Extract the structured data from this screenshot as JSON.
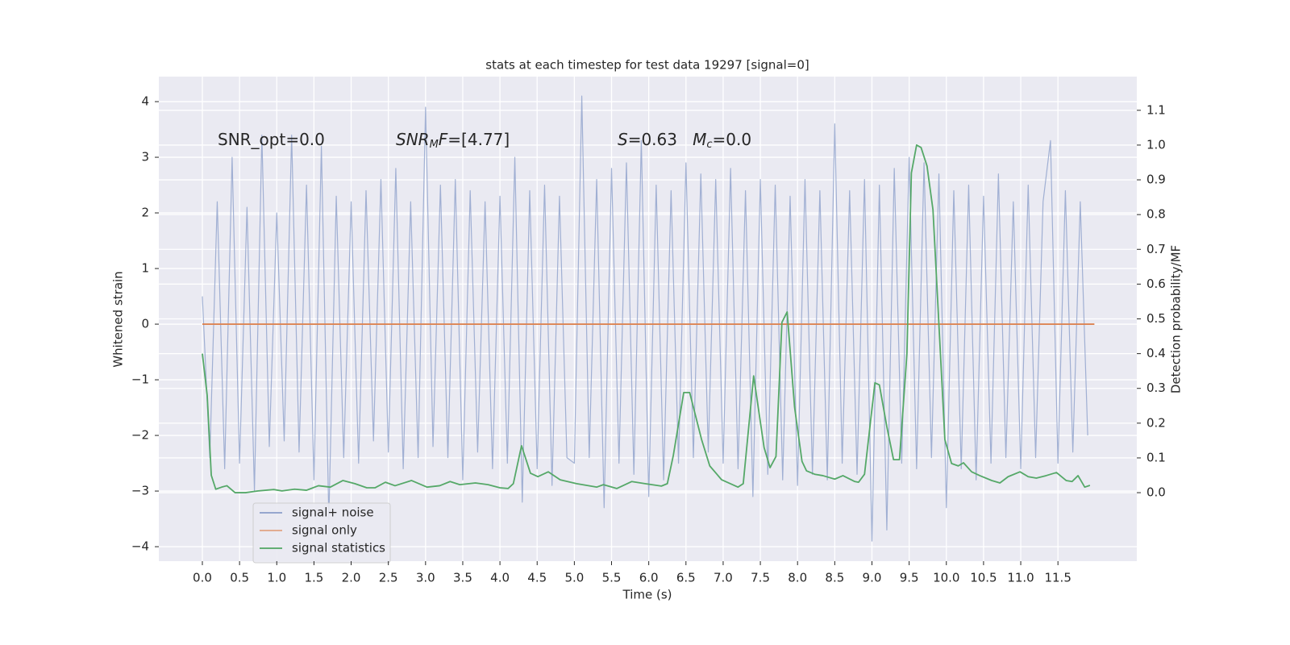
{
  "chart_data": {
    "type": "line",
    "title": "stats at each timestep for test data 19297 [signal=0]",
    "xlabel": "Time (s)",
    "ylabel": "Whitened strain",
    "y2label": "Detection probability/MF",
    "annotations": [
      {
        "segments": [
          "SNR_opt=0.0"
        ]
      },
      {
        "segments": [
          "SNR",
          "M",
          "F",
          "=[4.77]"
        ]
      },
      {
        "segments": [
          "S",
          "=0.63   ",
          "M",
          "c",
          "=0.0"
        ]
      }
    ],
    "legend": "lower left",
    "grid": true,
    "xlim": [
      -0.585,
      12.56
    ],
    "xticks": [
      {
        "value": 0,
        "label": "0.0"
      },
      0.5,
      {
        "value": 1,
        "label": "1.0"
      },
      1.5,
      {
        "value": 2,
        "label": "2.0"
      },
      2.5,
      {
        "value": 3,
        "label": "3.0"
      },
      3.5,
      {
        "value": 4,
        "label": "4.0"
      },
      4.5,
      {
        "value": 5,
        "label": "5.0"
      },
      5.5,
      {
        "value": 6,
        "label": "6.0"
      },
      6.5,
      {
        "value": 7,
        "label": "7.0"
      },
      7.5,
      {
        "value": 8,
        "label": "8.0"
      },
      8.5,
      {
        "value": 9,
        "label": "9.0"
      },
      9.5,
      {
        "value": 10,
        "label": "10.0"
      },
      10.5,
      {
        "value": 11,
        "label": "11.0"
      },
      11.5
    ],
    "ylim": [
      -4.26,
      4.45
    ],
    "yticks": [
      {
        "value": -4,
        "label": "−4"
      },
      {
        "value": -3,
        "label": "−3"
      },
      {
        "value": -2,
        "label": "−2"
      },
      {
        "value": -1,
        "label": "−1"
      },
      0,
      1,
      2,
      3,
      4
    ],
    "y2lim": [
      -0.197,
      1.197
    ],
    "y2ticks": [
      {
        "value": 0,
        "label": "0.0"
      },
      0.1,
      0.2,
      0.3,
      0.4,
      0.5,
      0.6,
      0.7,
      0.8,
      0.9,
      {
        "value": 1,
        "label": "1.0"
      },
      1.1
    ],
    "series": [
      {
        "name": "signal+ noise",
        "color": "#8da0cb",
        "x": [
          0,
          0.1,
          0.2,
          0.3,
          0.4,
          0.5,
          0.6,
          0.7,
          0.8,
          0.9,
          1,
          1.1,
          1.2,
          1.3,
          1.4,
          1.5,
          1.6,
          1.7,
          1.8,
          1.9,
          2,
          2.1,
          2.2,
          2.3,
          2.4,
          2.5,
          2.6,
          2.7,
          2.8,
          2.9,
          3,
          3.1,
          3.2,
          3.3,
          3.4,
          3.5,
          3.6,
          3.7,
          3.8,
          3.9,
          4,
          4.1,
          4.2,
          4.3,
          4.4,
          4.5,
          4.6,
          4.7,
          4.8,
          4.9,
          5,
          5.1,
          5.2,
          5.3,
          5.4,
          5.5,
          5.6,
          5.7,
          5.8,
          5.9,
          6,
          6.1,
          6.2,
          6.3,
          6.4,
          6.5,
          6.6,
          6.7,
          6.8,
          6.9,
          7,
          7.1,
          7.2,
          7.3,
          7.4,
          7.5,
          7.6,
          7.7,
          7.8,
          7.9,
          8,
          8.1,
          8.2,
          8.3,
          8.4,
          8.5,
          8.6,
          8.7,
          8.8,
          8.9,
          9,
          9.1,
          9.2,
          9.3,
          9.4,
          9.5,
          9.6,
          9.7,
          9.8,
          9.9,
          10,
          10.1,
          10.2,
          10.3,
          10.4,
          10.5,
          10.6,
          10.7,
          10.8,
          10.9,
          11,
          11.1,
          11.2,
          11.3,
          11.4,
          11.5,
          11.6,
          11.7,
          11.8,
          11.9
        ],
        "values": [
          0.5,
          -2.4,
          2.2,
          -2.6,
          3.0,
          -2.5,
          2.1,
          -3.0,
          3.4,
          -2.2,
          2.0,
          -2.1,
          3.4,
          -2.3,
          2.5,
          -2.8,
          3.2,
          -3.5,
          2.3,
          -2.4,
          2.2,
          -2.5,
          2.4,
          -2.1,
          2.6,
          -2.3,
          2.8,
          -2.6,
          2.2,
          -2.4,
          3.9,
          -2.2,
          2.5,
          -2.4,
          2.6,
          -2.8,
          2.4,
          -2.3,
          2.2,
          -2.6,
          2.3,
          -2.5,
          3.0,
          -3.2,
          2.4,
          -2.6,
          2.5,
          -2.9,
          2.3,
          -2.4,
          -2.5,
          4.1,
          -2.4,
          2.6,
          -3.3,
          2.8,
          -2.5,
          2.9,
          -2.7,
          3.3,
          -3.1,
          2.5,
          -2.8,
          2.4,
          -2.5,
          2.9,
          -2.4,
          2.7,
          -2.3,
          2.6,
          -2.5,
          2.8,
          -2.6,
          2.4,
          -3.1,
          2.6,
          -2.7,
          2.5,
          -2.8,
          2.3,
          -2.9,
          2.6,
          -2.7,
          2.4,
          -2.8,
          3.6,
          -2.5,
          2.4,
          -2.7,
          2.6,
          -3.9,
          2.5,
          -3.7,
          2.8,
          -2.5,
          3.0,
          -2.6,
          2.9,
          -2.4,
          2.7,
          -3.3,
          2.4,
          -2.6,
          2.5,
          -2.8,
          2.3,
          -2.5,
          2.7,
          -2.4,
          2.2,
          -2.6,
          2.5,
          -2.4,
          2.2,
          3.3,
          -2.5,
          2.4,
          -2.3,
          2.2,
          -2.0
        ]
      },
      {
        "name": "signal only",
        "color": "#dd8452",
        "x": [
          0,
          11.99
        ],
        "values": [
          0,
          0
        ]
      },
      {
        "name": "signal statistics",
        "color": "#55a868",
        "axis": "y2",
        "x": [
          0,
          0.065,
          0.12,
          0.18,
          0.26,
          0.33,
          0.44,
          0.58,
          0.75,
          0.96,
          1.07,
          1.24,
          1.4,
          1.56,
          1.72,
          1.89,
          2.05,
          2.21,
          2.32,
          2.46,
          2.59,
          2.81,
          3.02,
          3.19,
          3.33,
          3.46,
          3.67,
          3.84,
          4.0,
          4.11,
          4.18,
          4.29,
          4.41,
          4.51,
          4.65,
          4.81,
          5.03,
          5.3,
          5.39,
          5.57,
          5.77,
          5.95,
          6.17,
          6.25,
          6.33,
          6.47,
          6.55,
          6.71,
          6.82,
          6.98,
          7.2,
          7.27,
          7.41,
          7.55,
          7.63,
          7.71,
          7.79,
          7.86,
          7.96,
          8.06,
          8.12,
          8.23,
          8.34,
          8.5,
          8.61,
          8.77,
          8.82,
          8.9,
          9.04,
          9.1,
          9.2,
          9.29,
          9.37,
          9.47,
          9.53,
          9.6,
          9.66,
          9.74,
          9.82,
          9.91,
          9.98,
          10.07,
          10.16,
          10.23,
          10.34,
          10.45,
          10.61,
          10.72,
          10.83,
          10.99,
          11.1,
          11.21,
          11.34,
          11.48,
          11.61,
          11.69,
          11.77,
          11.86,
          11.93
        ],
        "values": [
          0.4,
          0.28,
          0.05,
          0.01,
          0.016,
          0.02,
          0.0,
          0.0,
          0.005,
          0.009,
          0.005,
          0.01,
          0.007,
          0.02,
          0.016,
          0.035,
          0.026,
          0.014,
          0.014,
          0.03,
          0.02,
          0.035,
          0.016,
          0.02,
          0.032,
          0.023,
          0.028,
          0.023,
          0.014,
          0.012,
          0.026,
          0.135,
          0.056,
          0.046,
          0.06,
          0.037,
          0.026,
          0.016,
          0.023,
          0.012,
          0.032,
          0.026,
          0.019,
          0.026,
          0.107,
          0.288,
          0.288,
          0.153,
          0.077,
          0.037,
          0.016,
          0.026,
          0.336,
          0.13,
          0.072,
          0.104,
          0.49,
          0.52,
          0.246,
          0.09,
          0.063,
          0.053,
          0.049,
          0.039,
          0.049,
          0.032,
          0.03,
          0.053,
          0.316,
          0.31,
          0.19,
          0.095,
          0.095,
          0.4,
          0.92,
          1.0,
          0.993,
          0.94,
          0.814,
          0.443,
          0.153,
          0.084,
          0.077,
          0.086,
          0.06,
          0.049,
          0.035,
          0.028,
          0.046,
          0.06,
          0.046,
          0.042,
          0.049,
          0.058,
          0.035,
          0.032,
          0.049,
          0.016,
          0.021
        ]
      }
    ]
  }
}
